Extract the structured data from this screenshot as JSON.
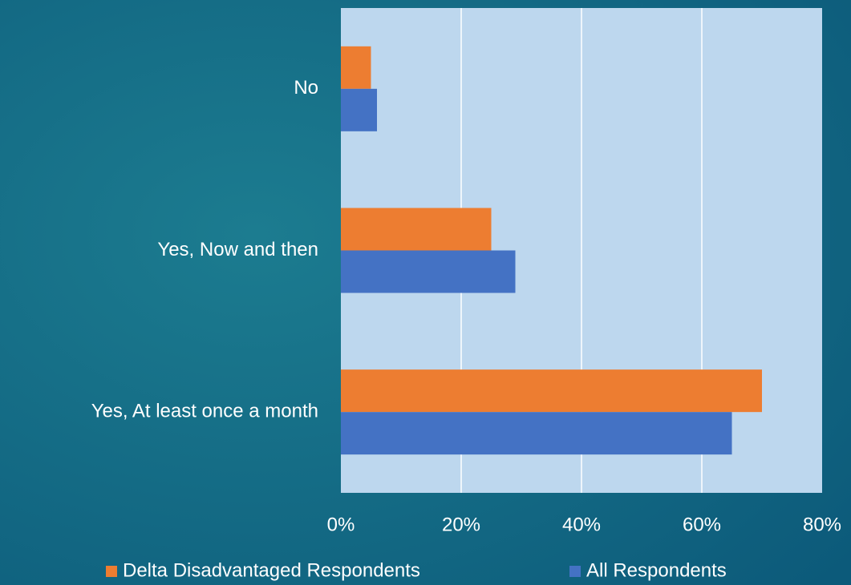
{
  "chart_data": {
    "type": "bar",
    "orientation": "horizontal",
    "categories": [
      "No",
      "Yes, Now and then",
      "Yes, At least once a month"
    ],
    "series": [
      {
        "name": "Delta Disadvantaged Respondents",
        "color": "#ed7d31",
        "values": [
          5,
          25,
          70
        ]
      },
      {
        "name": "All Respondents",
        "color": "#4472c4",
        "values": [
          6,
          29,
          65
        ]
      }
    ],
    "xlim": [
      0,
      80
    ],
    "xticks": [
      {
        "value": 0,
        "label": "0%"
      },
      {
        "value": 20,
        "label": "20%"
      },
      {
        "value": 40,
        "label": "40%"
      },
      {
        "value": 60,
        "label": "60%"
      },
      {
        "value": 80,
        "label": "80%"
      }
    ],
    "grid": true,
    "legend": "bottom"
  }
}
